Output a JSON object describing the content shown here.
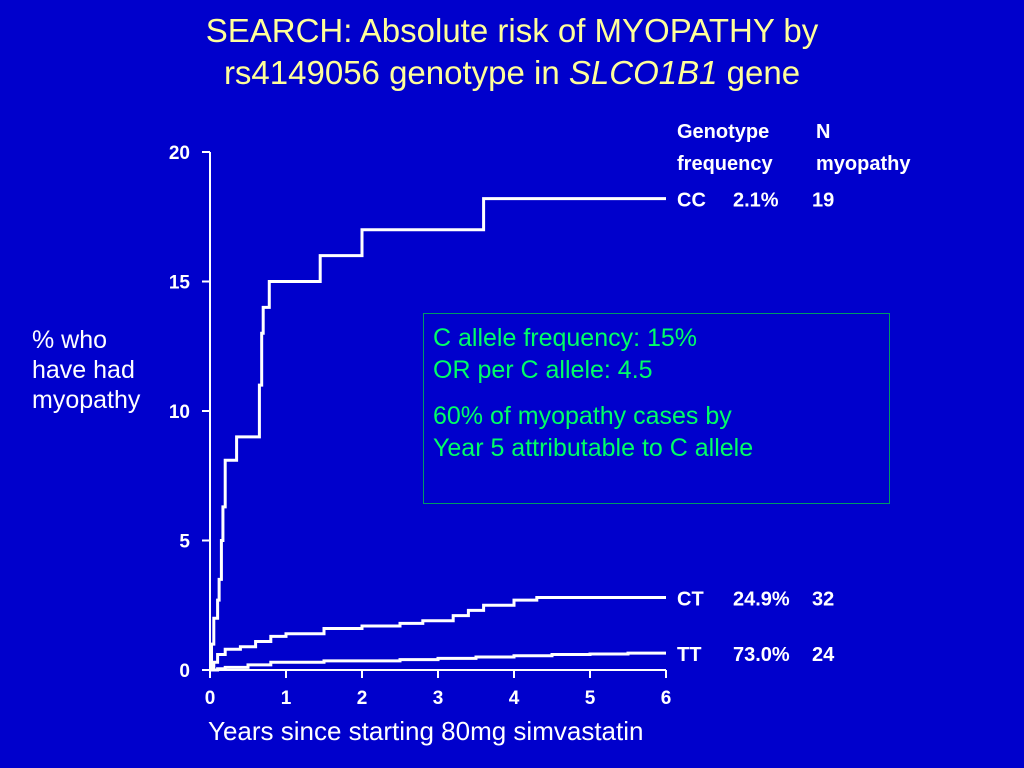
{
  "slide": {
    "title_line1": "SEARCH: Absolute risk of MYOPATHY by",
    "title_line2_prefix": "rs4149056 genotype in ",
    "title_line2_italic": "SLCO1B1",
    "title_line2_suffix": " gene",
    "ylabel_lines": [
      "% who",
      "have had",
      "myopathy"
    ],
    "xlabel": "Years since starting 80mg simvastatin",
    "infobox": {
      "line1": "C allele frequency: 15%",
      "line2": "OR per C allele: 4.5",
      "line3": "60% of myopathy cases by",
      "line4": "Year 5 attributable to C allele"
    },
    "colors": {
      "background": "#0000cc",
      "title": "#ffff99",
      "infobox_text": "#00ff66",
      "lines": "#ffffff"
    }
  },
  "chart_data": {
    "type": "line",
    "xlim": [
      0,
      6
    ],
    "ylim": [
      0,
      20
    ],
    "x_ticks": [
      0,
      1,
      2,
      3,
      4,
      5,
      6
    ],
    "y_ticks": [
      0,
      5,
      10,
      15,
      20
    ],
    "legend_header": {
      "col1_line1": "Genotype",
      "col1_line2": "frequency",
      "col2_line1": "N",
      "col2_line2": "myopathy"
    },
    "series": [
      {
        "name": "CC",
        "frequency": "2.1%",
        "n_myopathy": "19",
        "steps": [
          [
            0,
            0
          ],
          [
            0.02,
            1
          ],
          [
            0.05,
            2
          ],
          [
            0.1,
            2.7
          ],
          [
            0.12,
            3.5
          ],
          [
            0.15,
            5
          ],
          [
            0.17,
            6.3
          ],
          [
            0.2,
            8.1
          ],
          [
            0.35,
            9
          ],
          [
            0.65,
            11
          ],
          [
            0.68,
            13
          ],
          [
            0.7,
            14
          ],
          [
            0.78,
            15
          ],
          [
            1.45,
            16
          ],
          [
            2.0,
            17
          ],
          [
            3.6,
            18.2
          ],
          [
            6.0,
            18.2
          ]
        ]
      },
      {
        "name": "CT",
        "frequency": "24.9%",
        "n_myopathy": "32",
        "steps": [
          [
            0,
            0
          ],
          [
            0.05,
            0.3
          ],
          [
            0.1,
            0.6
          ],
          [
            0.2,
            0.8
          ],
          [
            0.4,
            0.9
          ],
          [
            0.6,
            1.1
          ],
          [
            0.8,
            1.3
          ],
          [
            1.0,
            1.4
          ],
          [
            1.5,
            1.6
          ],
          [
            2.0,
            1.7
          ],
          [
            2.5,
            1.8
          ],
          [
            2.8,
            1.9
          ],
          [
            3.2,
            2.1
          ],
          [
            3.4,
            2.3
          ],
          [
            3.6,
            2.5
          ],
          [
            4.0,
            2.7
          ],
          [
            4.3,
            2.8
          ],
          [
            6.0,
            2.8
          ]
        ]
      },
      {
        "name": "TT",
        "frequency": "73.0%",
        "n_myopathy": "24",
        "steps": [
          [
            0,
            0
          ],
          [
            0.1,
            0.05
          ],
          [
            0.2,
            0.1
          ],
          [
            0.5,
            0.2
          ],
          [
            0.8,
            0.3
          ],
          [
            1.5,
            0.35
          ],
          [
            2.5,
            0.4
          ],
          [
            3.0,
            0.45
          ],
          [
            3.5,
            0.5
          ],
          [
            4.0,
            0.55
          ],
          [
            4.5,
            0.6
          ],
          [
            5.0,
            0.62
          ],
          [
            5.5,
            0.65
          ],
          [
            6.0,
            0.65
          ]
        ]
      }
    ]
  }
}
